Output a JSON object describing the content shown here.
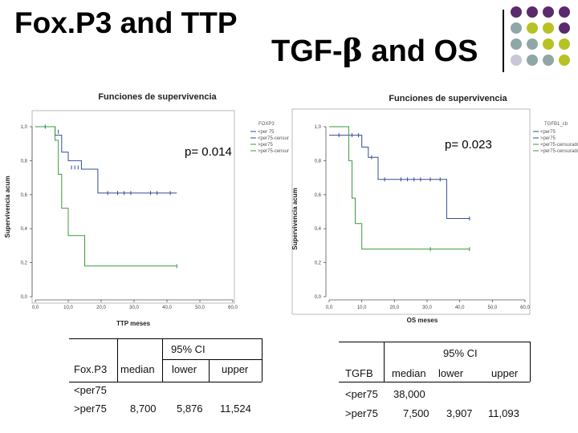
{
  "slide": {
    "title_left": "Fox.P3 and TTP",
    "title_right_prefix": "TGF-",
    "title_right_symbol": "β",
    "title_right_suffix": " and OS",
    "dot_colors": [
      "#5b2a6e",
      "#b7c225",
      "#8fa7a6",
      "#c9c6d6"
    ]
  },
  "chart_data": [
    {
      "type": "line",
      "subtype": "kaplan-meier",
      "title": "Funciones de supervivencia",
      "xlabel": "TTP meses",
      "ylabel": "Supervivencia acum",
      "xlim": [
        0,
        60
      ],
      "ylim": [
        0,
        1
      ],
      "xticks": [
        "0,0",
        "10,0",
        "20,0",
        "30,0",
        "40,0",
        "50,0",
        "60,0"
      ],
      "yticks": [
        "0,0",
        "0,2",
        "0,4",
        "0,6",
        "0,8",
        "1,0"
      ],
      "legend_title": "FOXP3",
      "legend": [
        "<per 75",
        "<per75-censurado",
        ">per75",
        ">per75-censurado"
      ],
      "p_value": "p= 0.014",
      "series": [
        {
          "name": "<per75",
          "color": "#334b9a",
          "steps": [
            [
              0,
              1.0
            ],
            [
              6,
              1.0
            ],
            [
              6,
              0.95
            ],
            [
              8,
              0.95
            ],
            [
              8,
              0.85
            ],
            [
              10,
              0.85
            ],
            [
              10,
              0.8
            ],
            [
              14,
              0.8
            ],
            [
              14,
              0.75
            ],
            [
              19,
              0.75
            ],
            [
              19,
              0.61
            ],
            [
              43,
              0.61
            ]
          ],
          "censored": [
            [
              3,
              1.0
            ],
            [
              7,
              0.97
            ],
            [
              11,
              0.76
            ],
            [
              12,
              0.76
            ],
            [
              13,
              0.76
            ],
            [
              22,
              0.61
            ],
            [
              25,
              0.61
            ],
            [
              27,
              0.61
            ],
            [
              29,
              0.61
            ],
            [
              35,
              0.61
            ],
            [
              37,
              0.61
            ],
            [
              41,
              0.61
            ]
          ]
        },
        {
          "name": ">per75",
          "color": "#3a9a3e",
          "steps": [
            [
              0,
              1.0
            ],
            [
              6,
              1.0
            ],
            [
              6,
              0.92
            ],
            [
              7,
              0.92
            ],
            [
              7,
              0.72
            ],
            [
              8,
              0.72
            ],
            [
              8,
              0.52
            ],
            [
              10,
              0.52
            ],
            [
              10,
              0.36
            ],
            [
              15,
              0.36
            ],
            [
              15,
              0.18
            ],
            [
              43,
              0.18
            ]
          ],
          "censored": [
            [
              43,
              0.18
            ]
          ]
        }
      ]
    },
    {
      "type": "line",
      "subtype": "kaplan-meier",
      "title": "Funciones de supervivencia",
      "xlabel": "OS meses",
      "ylabel": "Supervivencia acum",
      "xlim": [
        0,
        60
      ],
      "ylim": [
        0,
        1
      ],
      "xticks": [
        "0,0",
        "10,0",
        "20,0",
        "30,0",
        "40,0",
        "50,0",
        "60,0"
      ],
      "yticks": [
        "0,0",
        "0,2",
        "0,4",
        "0,6",
        "0,8",
        "1,0"
      ],
      "legend_title": "TGFB1_cb",
      "legend": [
        "<per75",
        ">per75",
        "<per75-censurado",
        ">per75-censurado"
      ],
      "p_value": "p= 0.023",
      "series": [
        {
          "name": "<per75",
          "color": "#334b9a",
          "steps": [
            [
              0,
              0.95
            ],
            [
              10,
              0.95
            ],
            [
              10,
              0.88
            ],
            [
              12,
              0.88
            ],
            [
              12,
              0.82
            ],
            [
              15,
              0.82
            ],
            [
              15,
              0.69
            ],
            [
              36,
              0.69
            ],
            [
              36,
              0.46
            ],
            [
              43,
              0.46
            ]
          ],
          "censored": [
            [
              3,
              0.95
            ],
            [
              7,
              0.95
            ],
            [
              9,
              0.95
            ],
            [
              13,
              0.82
            ],
            [
              17,
              0.69
            ],
            [
              22,
              0.69
            ],
            [
              24,
              0.69
            ],
            [
              26,
              0.69
            ],
            [
              28,
              0.69
            ],
            [
              31,
              0.69
            ],
            [
              34,
              0.69
            ],
            [
              43,
              0.46
            ]
          ]
        },
        {
          "name": ">per75",
          "color": "#3a9a3e",
          "steps": [
            [
              0,
              1.0
            ],
            [
              6,
              1.0
            ],
            [
              6,
              0.8
            ],
            [
              7,
              0.8
            ],
            [
              7,
              0.58
            ],
            [
              8,
              0.58
            ],
            [
              8,
              0.43
            ],
            [
              10,
              0.43
            ],
            [
              10,
              0.28
            ],
            [
              43,
              0.28
            ]
          ],
          "censored": [
            [
              31,
              0.28
            ],
            [
              43,
              0.28
            ]
          ]
        }
      ]
    }
  ],
  "table_left": {
    "ci_header": "95% CI",
    "col_label": "Fox.P3",
    "col_median": "median",
    "col_lower": "lower",
    "col_upper": "upper",
    "rows": [
      {
        "label": "<per75",
        "median": "",
        "lower": "",
        "upper": ""
      },
      {
        "label": ">per75",
        "median": "8,700",
        "lower": "5,876",
        "upper": "11,524"
      }
    ]
  },
  "table_right": {
    "ci_header": "95% CI",
    "col_label": "TGFB",
    "col_median": "median",
    "col_lower": "lower",
    "col_upper": "upper",
    "rows": [
      {
        "label": "<per75",
        "median": "38,000",
        "lower": "",
        "upper": ""
      },
      {
        "label": ">per75",
        "median": "7,500",
        "lower": "3,907",
        "upper": "11,093"
      }
    ]
  }
}
